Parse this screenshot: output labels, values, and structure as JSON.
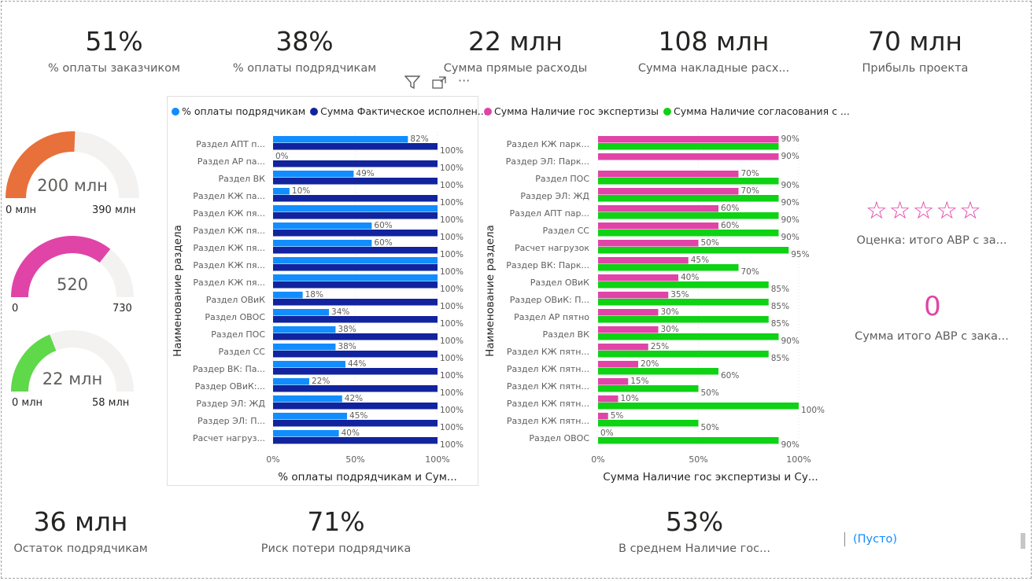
{
  "kpis_top": [
    {
      "value": "51%",
      "label": "% оплаты заказчиком"
    },
    {
      "value": "38%",
      "label": "% оплаты подрядчикам"
    },
    {
      "value": "22 млн",
      "label": "Сумма прямые расходы"
    },
    {
      "value": "108 млн",
      "label": "Сумма накладные расх..."
    },
    {
      "value": "70 млн",
      "label": "Прибыль проекта"
    }
  ],
  "kpis_bottom": [
    {
      "value": "36 млн",
      "label": "Остаток подрядчикам"
    },
    {
      "value": "71%",
      "label": "Риск потери подрядчика"
    },
    {
      "value": "53%",
      "label": "В среднем Наличие гос..."
    }
  ],
  "gauges": [
    {
      "value_text": "200 млн",
      "min_text": "0 млн",
      "max_text": "390 млн",
      "value": 200,
      "min": 0,
      "max": 390,
      "color": "#e8703a"
    },
    {
      "value_text": "520",
      "min_text": "0",
      "max_text": "730",
      "value": 520,
      "min": 0,
      "max": 730,
      "color": "#e044a7"
    },
    {
      "value_text": "22 млн",
      "min_text": "0 млн",
      "max_text": "58 млн",
      "value": 22,
      "min": 0,
      "max": 58,
      "color": "#5fd84a"
    }
  ],
  "toolbar": {
    "filter_icon": "filter-icon",
    "focus_icon": "focus-mode-icon",
    "more_icon": "more-options-icon",
    "more_label": "···"
  },
  "right_panel": {
    "stars": "☆☆☆☆☆",
    "stars_label": "Оценка: итого АВР с за...",
    "zero_value": "0",
    "zero_label": "Сумма итого АВР с зака...",
    "empty_label": "(Пусто)"
  },
  "chart_data": [
    {
      "type": "bar",
      "orientation": "horizontal",
      "legend": [
        "% оплаты подрядчикам",
        "Сумма Фактическое исполнен..."
      ],
      "legend_position": "top-left",
      "ylabel": "Наименование раздела",
      "xlabel": "% оплаты подрядчикам и Сум...",
      "xlim": [
        0,
        100
      ],
      "xticks": [
        "0%",
        "50%",
        "100%"
      ],
      "categories": [
        "Раздел АПТ п...",
        "Раздел АР па...",
        "Раздел ВК",
        "Раздел КЖ па...",
        "Раздел КЖ пя...",
        "Раздел КЖ пя...",
        "Раздел КЖ пя...",
        "Раздел КЖ пя...",
        "Раздел КЖ пя...",
        "Раздел ОВиК",
        "Раздел ОВОС",
        "Раздел ПОС",
        "Раздел СС",
        "Раздер ВК: Па...",
        "Раздер ОВиК:...",
        "Раздер ЭЛ: ЖД",
        "Раздер ЭЛ: П...",
        "Расчет нагруз..."
      ],
      "series": [
        {
          "name": "% оплаты подрядчикам",
          "color": "#118dff",
          "values": [
            82,
            0,
            49,
            10,
            100,
            60,
            60,
            100,
            100,
            18,
            34,
            38,
            38,
            44,
            22,
            42,
            45,
            40
          ],
          "labels": [
            "82%",
            "0%",
            "49%",
            "10%",
            "",
            "60%",
            "60%",
            "",
            "",
            "18%",
            "34%",
            "38%",
            "38%",
            "44%",
            "22%",
            "42%",
            "45%",
            "40%"
          ]
        },
        {
          "name": "Сумма Фактическое исполнен...",
          "color": "#12239e",
          "values": [
            100,
            100,
            100,
            100,
            100,
            100,
            100,
            100,
            100,
            100,
            100,
            100,
            100,
            100,
            100,
            100,
            100,
            100
          ],
          "labels": [
            "100%",
            "100%",
            "100%",
            "100%",
            "100%",
            "100%",
            "100%",
            "100%",
            "100%",
            "100%",
            "100%",
            "100%",
            "100%",
            "100%",
            "100%",
            "100%",
            "100%",
            "100%"
          ]
        }
      ]
    },
    {
      "type": "bar",
      "orientation": "horizontal",
      "legend": [
        "Сумма Наличие гос экспертизы",
        "Сумма Наличие согласования с ..."
      ],
      "legend_position": "top-left",
      "ylabel": "Наименование раздела",
      "xlabel": "Сумма Наличие гос экспертизы и Су...",
      "xlim": [
        0,
        100
      ],
      "xticks": [
        "0%",
        "50%",
        "100%"
      ],
      "categories": [
        "Раздел КЖ парк...",
        "Раздер ЭЛ: Парк...",
        "Раздел ПОС",
        "Раздер ЭЛ: ЖД",
        "Раздел АПТ пар...",
        "Раздел СС",
        "Расчет нагрузок",
        "Раздер ВК: Парк...",
        "Раздел ОВиК",
        "Раздер ОВиК: П...",
        "Раздел АР пятно",
        "Раздел ВК",
        "Раздел КЖ пятн...",
        "Раздел КЖ пятн...",
        "Раздел КЖ пятн...",
        "Раздел КЖ пятн...",
        "Раздел КЖ пятн...",
        "Раздел ОВОС"
      ],
      "series": [
        {
          "name": "Сумма Наличие гос экспертизы",
          "color": "#e044a7",
          "values": [
            90,
            90,
            70,
            70,
            60,
            60,
            50,
            45,
            40,
            35,
            30,
            30,
            25,
            20,
            15,
            10,
            5,
            0
          ],
          "labels": [
            "90%",
            "90%",
            "70%",
            "70%",
            "60%",
            "60%",
            "50%",
            "45%",
            "40%",
            "35%",
            "30%",
            "30%",
            "25%",
            "20%",
            "15%",
            "10%",
            "5%",
            "0%"
          ]
        },
        {
          "name": "Сумма Наличие согласования с ...",
          "color": "#0ed214",
          "values": [
            90,
            null,
            90,
            90,
            90,
            90,
            95,
            70,
            85,
            85,
            85,
            90,
            85,
            60,
            50,
            100,
            50,
            90
          ],
          "labels": [
            "",
            "",
            "90%",
            "90%",
            "90%",
            "90%",
            "95%",
            "70%",
            "85%",
            "85%",
            "85%",
            "90%",
            "85%",
            "60%",
            "50%",
            "100%",
            "50%",
            "90%"
          ]
        }
      ]
    }
  ]
}
